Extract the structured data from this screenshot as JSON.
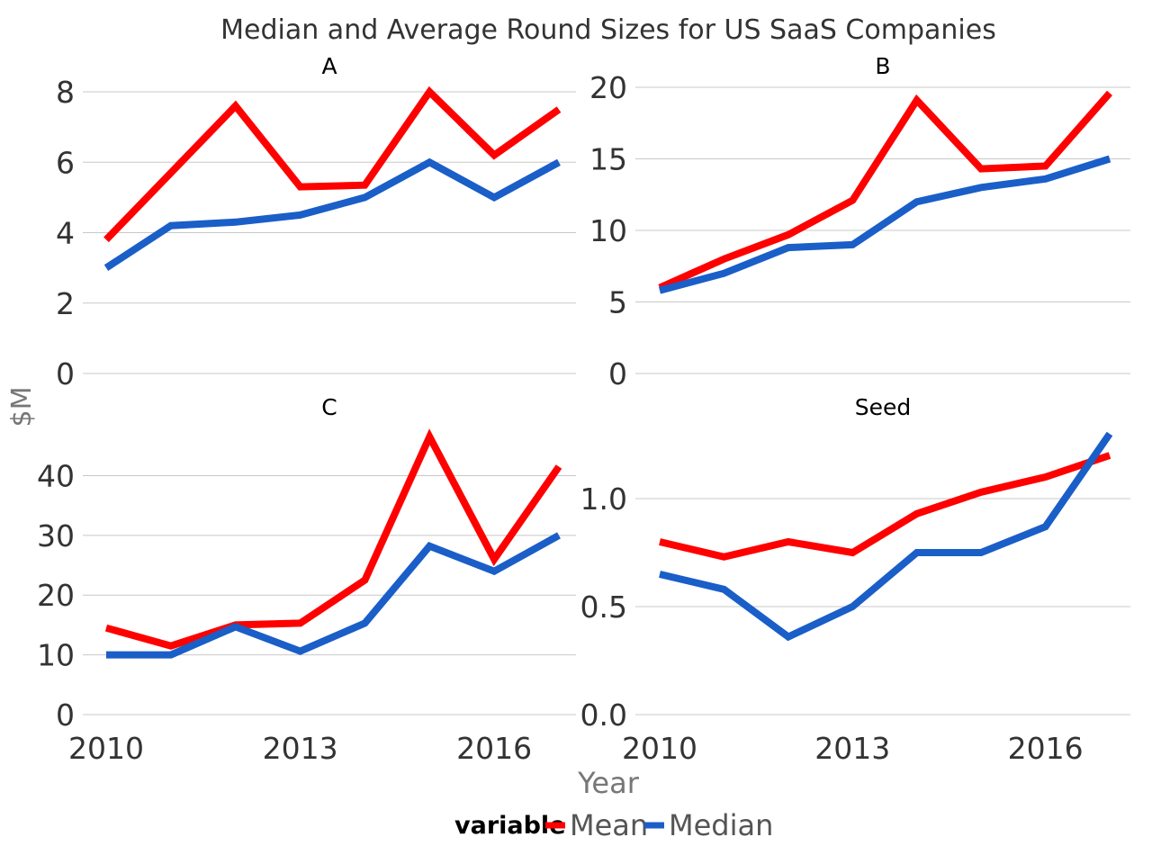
{
  "chart_data": {
    "type": "line",
    "title": "Median and Average Round Sizes for US SaaS Companies",
    "xlabel": "Year",
    "ylabel": "$M",
    "x_ticks": [
      2010,
      2013,
      2016
    ],
    "x": [
      2010,
      2011,
      2012,
      2013,
      2014,
      2015,
      2016,
      2017
    ],
    "xlim": [
      2010,
      2017
    ],
    "legend": {
      "title": "variable",
      "position": "bottom",
      "entries": [
        "Mean",
        "Median"
      ]
    },
    "colors": {
      "Mean": "#ff0000",
      "Median": "#1a5ec8"
    },
    "grid": true,
    "panels": [
      {
        "label": "A",
        "ylim": [
          0,
          8
        ],
        "y_ticks": [
          "0",
          "2",
          "4",
          "6",
          "8"
        ],
        "y_tick_values": [
          0,
          2,
          4,
          6,
          8
        ],
        "series": [
          {
            "name": "Mean",
            "values": [
              3.8,
              5.7,
              7.6,
              5.3,
              5.35,
              8.0,
              6.2,
              7.5
            ]
          },
          {
            "name": "Median",
            "values": [
              3.0,
              4.2,
              4.3,
              4.5,
              5.0,
              6.0,
              5.0,
              6.0
            ]
          }
        ]
      },
      {
        "label": "B",
        "ylim": [
          0,
          20
        ],
        "y_ticks": [
          "0",
          "5",
          "10",
          "15",
          "20"
        ],
        "y_tick_values": [
          0,
          5,
          10,
          15,
          20
        ],
        "series": [
          {
            "name": "Mean",
            "values": [
              6.0,
              8.0,
              9.7,
              12.1,
              19.1,
              14.3,
              14.5,
              19.6
            ]
          },
          {
            "name": "Median",
            "values": [
              5.8,
              7.0,
              8.8,
              9.0,
              12.0,
              13.0,
              13.6,
              15.0
            ]
          }
        ]
      },
      {
        "label": "C",
        "ylim": [
          0,
          47
        ],
        "y_ticks": [
          "0",
          "10",
          "20",
          "30",
          "40"
        ],
        "y_tick_values": [
          0,
          10,
          20,
          30,
          40
        ],
        "series": [
          {
            "name": "Mean",
            "values": [
              14.5,
              11.5,
              15.0,
              15.3,
              22.5,
              46.5,
              26.0,
              41.5
            ]
          },
          {
            "name": "Median",
            "values": [
              10.0,
              10.0,
              14.7,
              10.6,
              15.3,
              28.2,
              24.0,
              30.0
            ]
          }
        ]
      },
      {
        "label": "Seed",
        "ylim": [
          0,
          1.3
        ],
        "y_ticks": [
          "0.0",
          "0.5",
          "1.0"
        ],
        "y_tick_values": [
          0.0,
          0.5,
          1.0
        ],
        "series": [
          {
            "name": "Mean",
            "values": [
              0.8,
              0.73,
              0.8,
              0.75,
              0.93,
              1.03,
              1.1,
              1.2
            ]
          },
          {
            "name": "Median",
            "values": [
              0.65,
              0.58,
              0.36,
              0.5,
              0.75,
              0.75,
              0.87,
              1.3
            ]
          }
        ]
      }
    ]
  }
}
